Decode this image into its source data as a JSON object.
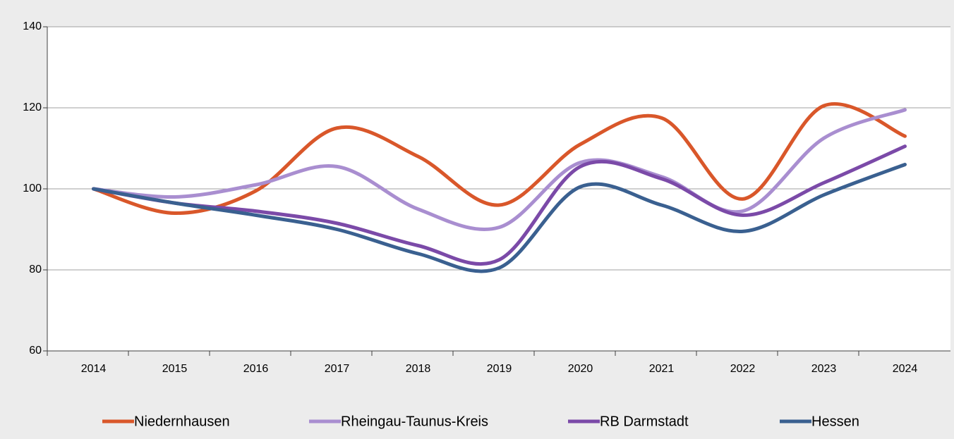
{
  "chart_data": {
    "type": "line",
    "categories": [
      "2014",
      "2015",
      "2016",
      "2017",
      "2018",
      "2019",
      "2020",
      "2021",
      "2022",
      "2023",
      "2024"
    ],
    "series": [
      {
        "name": "Niedernhausen",
        "color": "#d9572a",
        "values": [
          100,
          94,
          99.5,
          115,
          108,
          96,
          111,
          117.5,
          97.5,
          120.5,
          113
        ]
      },
      {
        "name": "Rheingau-Taunus-Kreis",
        "color": "#a98ed0",
        "values": [
          100,
          98,
          101,
          105.5,
          95,
          90.5,
          106.5,
          103,
          94.5,
          112.5,
          119.5
        ]
      },
      {
        "name": "RB Darmstadt",
        "color": "#7b4aa8",
        "values": [
          100,
          96.5,
          94.5,
          91.5,
          86,
          82.5,
          105.5,
          102.5,
          93.5,
          101.5,
          110.5
        ]
      },
      {
        "name": "Hessen",
        "color": "#3a6090",
        "values": [
          100,
          96.5,
          93.5,
          90,
          84,
          80.5,
          100.5,
          96,
          89.5,
          98.5,
          106
        ]
      }
    ],
    "ylim": [
      60,
      140
    ],
    "yticks": [
      60,
      80,
      100,
      120,
      140
    ],
    "grid": true,
    "smooth": true,
    "legend": "bottom"
  }
}
